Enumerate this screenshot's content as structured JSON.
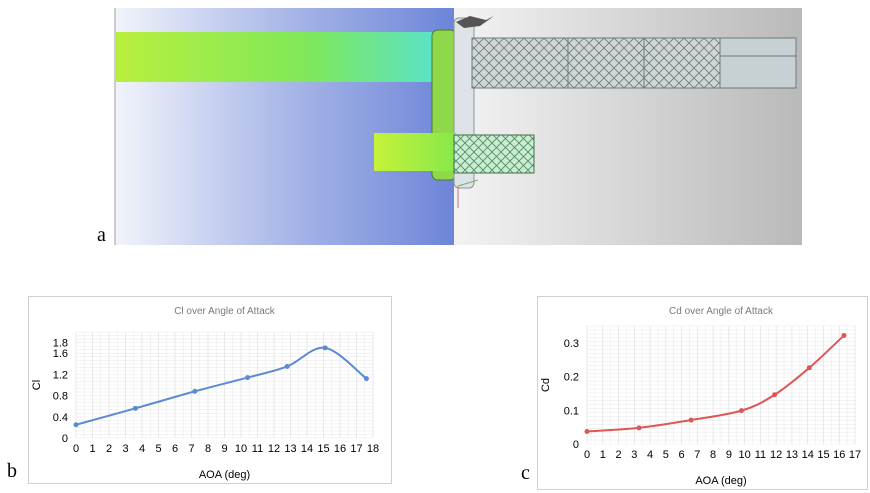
{
  "figure_labels": {
    "a": "a",
    "b": "b",
    "c": "c"
  },
  "colors": {
    "cl_series": "#5b8bd0",
    "cd_series": "#e05555",
    "grid": "#d9d9d9",
    "wing_green": "#9be84a",
    "background_blue": "#6d85d8"
  },
  "chart_data": [
    {
      "type": "line",
      "title": "Cl over Angle of Attack",
      "xlabel": "AOA (deg)",
      "ylabel": "Cl",
      "xlim": [
        0,
        18
      ],
      "ylim": [
        0,
        2.0
      ],
      "x_ticks": [
        0,
        1,
        2,
        3,
        4,
        5,
        6,
        7,
        8,
        9,
        10,
        11,
        12,
        13,
        14,
        15,
        16,
        17,
        18
      ],
      "y_ticks": [
        {
          "value": 0,
          "label": "0"
        },
        {
          "value": 0.4,
          "label": "0.4"
        },
        {
          "value": 0.8,
          "label": "0.8"
        },
        {
          "value": 1.2,
          "label": "1.2"
        },
        {
          "value": 1.6,
          "label": "1.6"
        },
        {
          "value": 1.8,
          "label": "1.8"
        }
      ],
      "grid": true,
      "series": [
        {
          "x": [
            0,
            3.6,
            7.2,
            10.4,
            12.8,
            15.1,
            17.6
          ],
          "y": [
            0.25,
            0.56,
            0.88,
            1.14,
            1.35,
            1.7,
            1.12
          ]
        }
      ]
    },
    {
      "type": "line",
      "title": "Cd over Angle of Attack",
      "xlabel": "AOA (deg)",
      "ylabel": "Cd",
      "xlim": [
        0,
        17
      ],
      "ylim": [
        0,
        0.35
      ],
      "x_ticks": [
        0,
        1,
        2,
        3,
        4,
        5,
        6,
        7,
        8,
        9,
        10,
        11,
        12,
        13,
        14,
        15,
        16,
        17
      ],
      "y_ticks": [
        {
          "value": 0,
          "label": "0"
        },
        {
          "value": 0.1,
          "label": "0.1"
        },
        {
          "value": 0.2,
          "label": "0.2"
        },
        {
          "value": 0.3,
          "label": "0.3"
        }
      ],
      "grid": true,
      "series": [
        {
          "x": [
            0,
            3.3,
            6.6,
            9.8,
            11.9,
            14.1,
            16.3
          ],
          "y": [
            0.037,
            0.048,
            0.071,
            0.099,
            0.146,
            0.226,
            0.322
          ]
        }
      ]
    }
  ]
}
